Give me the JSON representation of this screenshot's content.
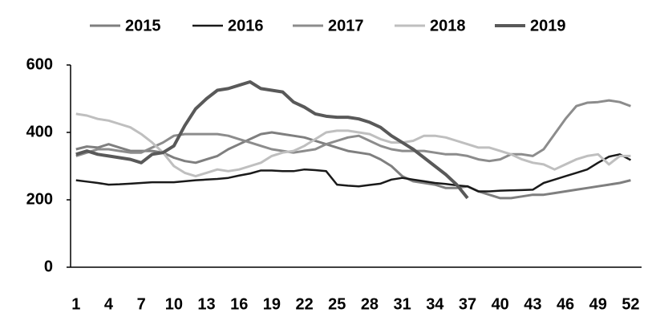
{
  "chart_data": {
    "type": "line",
    "x": [
      1,
      2,
      3,
      4,
      5,
      6,
      7,
      8,
      9,
      10,
      11,
      12,
      13,
      14,
      15,
      16,
      17,
      18,
      19,
      20,
      21,
      22,
      23,
      24,
      25,
      26,
      27,
      28,
      29,
      30,
      31,
      32,
      33,
      34,
      35,
      36,
      37,
      38,
      39,
      40,
      41,
      42,
      43,
      44,
      45,
      46,
      47,
      48,
      49,
      50,
      51,
      52
    ],
    "xlim": [
      0.5,
      53
    ],
    "xticks": [
      1,
      4,
      7,
      10,
      13,
      16,
      19,
      22,
      25,
      28,
      31,
      34,
      37,
      40,
      43,
      46,
      49,
      52
    ],
    "ylim": [
      0,
      600
    ],
    "yticks": [
      0,
      200,
      400,
      600
    ],
    "grid": false,
    "legend": "top",
    "series": [
      {
        "name": "2015",
        "color": "#7f7f7f",
        "width": 3,
        "values": [
          350,
          358,
          355,
          365,
          355,
          345,
          345,
          345,
          340,
          325,
          315,
          310,
          320,
          330,
          350,
          365,
          380,
          395,
          400,
          395,
          390,
          385,
          375,
          365,
          355,
          345,
          340,
          335,
          320,
          300,
          270,
          255,
          250,
          245,
          235,
          235,
          240,
          225,
          215,
          205,
          205,
          210,
          215,
          215,
          220,
          225,
          230,
          235,
          240,
          245,
          250,
          258
        ]
      },
      {
        "name": "2016",
        "color": "#1a1a1a",
        "width": 2.5,
        "values": [
          258,
          254,
          250,
          245,
          246,
          248,
          250,
          252,
          252,
          252,
          255,
          258,
          260,
          262,
          265,
          272,
          278,
          287,
          287,
          285,
          285,
          290,
          288,
          285,
          245,
          242,
          240,
          244,
          248,
          260,
          265,
          260,
          255,
          250,
          247,
          243,
          240,
          225,
          225,
          227,
          228,
          229,
          230,
          250,
          260,
          270,
          280,
          290,
          310,
          328,
          335,
          318
        ]
      },
      {
        "name": "2017",
        "color": "#8c8c8c",
        "width": 3,
        "values": [
          330,
          340,
          350,
          350,
          345,
          340,
          340,
          355,
          370,
          390,
          395,
          395,
          395,
          395,
          390,
          380,
          370,
          360,
          350,
          345,
          340,
          345,
          350,
          365,
          375,
          385,
          390,
          375,
          360,
          350,
          345,
          345,
          345,
          340,
          335,
          335,
          330,
          320,
          315,
          320,
          335,
          335,
          330,
          350,
          395,
          440,
          478,
          488,
          490,
          495,
          490,
          478
        ]
      },
      {
        "name": "2018",
        "color": "#bfbfbf",
        "width": 3,
        "values": [
          455,
          450,
          440,
          435,
          425,
          415,
          395,
          370,
          340,
          300,
          280,
          270,
          280,
          290,
          285,
          290,
          300,
          310,
          330,
          340,
          345,
          360,
          380,
          400,
          405,
          405,
          400,
          395,
          380,
          370,
          370,
          375,
          390,
          390,
          385,
          375,
          365,
          355,
          355,
          345,
          335,
          320,
          310,
          305,
          290,
          305,
          320,
          330,
          335,
          305,
          330,
          330
        ]
      },
      {
        "name": "2019",
        "color": "#595959",
        "width": 4,
        "values": [
          335,
          345,
          335,
          330,
          325,
          320,
          310,
          335,
          340,
          360,
          420,
          470,
          500,
          525,
          530,
          540,
          550,
          530,
          525,
          520,
          490,
          475,
          455,
          448,
          445,
          445,
          440,
          430,
          415,
          390,
          370,
          350,
          325,
          300,
          275,
          245,
          205,
          null,
          null,
          null,
          null,
          null,
          null,
          null,
          null,
          null,
          null,
          null,
          null,
          null,
          null,
          null
        ]
      }
    ]
  }
}
